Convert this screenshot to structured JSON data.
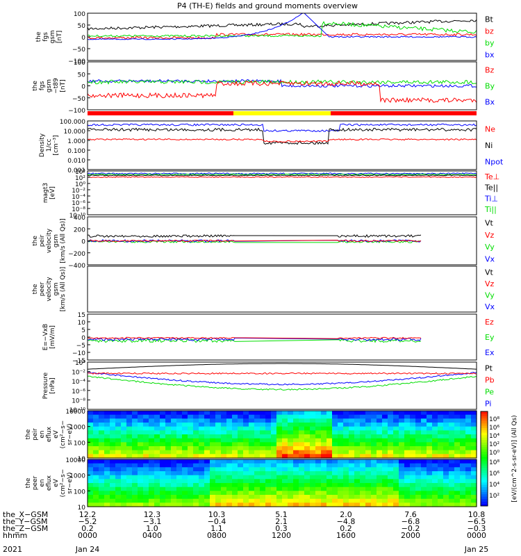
{
  "title": "P4 (TH-E) fields and ground moments overview",
  "colors": {
    "black": "#000000",
    "red": "#ff0000",
    "green": "#00dd00",
    "blue": "#0000ff",
    "yellow": "#ffff00"
  },
  "chart_data": [
    {
      "type": "line",
      "ylabel": [
        "the",
        "fgs",
        "gsm",
        "[nT]"
      ],
      "yticks": [
        "100",
        "50",
        "0",
        "−50",
        "−100"
      ],
      "ylim": [
        -100,
        100
      ],
      "legend": [
        {
          "label": "Bt",
          "color": "black"
        },
        {
          "label": "bz",
          "color": "red"
        },
        {
          "label": "by",
          "color": "green"
        },
        {
          "label": "bx",
          "color": "blue"
        }
      ]
    },
    {
      "type": "line",
      "ylabel": [
        "the",
        "fgs",
        "gsm",
        "−t89",
        "[nT]"
      ],
      "yticks": [
        "100",
        "50",
        "0",
        "−50",
        "−100"
      ],
      "ylim": [
        -120,
        100
      ],
      "legend": [
        {
          "label": "Bz",
          "color": "red"
        },
        {
          "label": "By",
          "color": "green"
        },
        {
          "label": "Bx",
          "color": "blue"
        }
      ]
    },
    {
      "type": "line",
      "ylabel": [
        "Density",
        "1/cc",
        "[cm⁻³]"
      ],
      "yticks": [
        "100.000",
        "10.000",
        "1.000",
        "0.100",
        "0.010",
        "0.001"
      ],
      "yscale": "log",
      "legend": [
        {
          "label": "Ne",
          "color": "red"
        },
        {
          "label": "Ni",
          "color": "black"
        },
        {
          "label": "Npot",
          "color": "blue"
        }
      ]
    },
    {
      "type": "line",
      "ylabel": [
        "magt3",
        "[eV]"
      ],
      "yticks": [
        "10⁴",
        "10²",
        "10⁰",
        "10⁻²",
        "10⁻⁴",
        "10⁻⁶",
        "10⁻⁸",
        "10⁻¹⁰"
      ],
      "yscale": "log",
      "legend": [
        {
          "label": "Te⊥",
          "color": "red"
        },
        {
          "label": "Te||",
          "color": "black"
        },
        {
          "label": "Ti⊥",
          "color": "blue"
        },
        {
          "label": "Ti||",
          "color": "green"
        }
      ]
    },
    {
      "type": "line",
      "ylabel": [
        "the",
        "peir",
        "velocity",
        "gsm",
        "[km/s (All Qs)]"
      ],
      "yticks": [
        "400",
        "200",
        "0",
        "−200",
        "−400"
      ],
      "ylim": [
        -400,
        400
      ],
      "legend": [
        {
          "label": "Vt",
          "color": "black"
        },
        {
          "label": "Vz",
          "color": "red"
        },
        {
          "label": "Vy",
          "color": "green"
        },
        {
          "label": "Vx",
          "color": "blue"
        }
      ]
    },
    {
      "type": "line",
      "ylabel": [
        "the",
        "peer",
        "velocity",
        "gsm",
        "[km/s (All Qs)]"
      ],
      "yticks": [],
      "legend": [
        {
          "label": "Vt",
          "color": "black"
        },
        {
          "label": "Vz",
          "color": "red"
        },
        {
          "label": "Vy",
          "color": "green"
        },
        {
          "label": "Vx",
          "color": "blue"
        }
      ]
    },
    {
      "type": "line",
      "ylabel": [
        "E=−VxB",
        "[mV/m]"
      ],
      "yticks": [
        "15",
        "10",
        "5",
        "0",
        "−5",
        "−10",
        "−15"
      ],
      "ylim": [
        -15,
        15
      ],
      "legend": [
        {
          "label": "Ez",
          "color": "red"
        },
        {
          "label": "Ey",
          "color": "green"
        },
        {
          "label": "Ex",
          "color": "blue"
        }
      ]
    },
    {
      "type": "line",
      "ylabel": [
        "Pressure",
        "[nPa]"
      ],
      "yticks": [
        "10⁰",
        "10⁻²",
        "10⁻⁴",
        "10⁻⁶",
        "10⁻⁸",
        "10⁻¹⁰"
      ],
      "yscale": "log",
      "legend": [
        {
          "label": "Pt",
          "color": "black"
        },
        {
          "label": "Pb",
          "color": "red"
        },
        {
          "label": "Pe",
          "color": "green"
        },
        {
          "label": "Pi",
          "color": "blue"
        }
      ]
    },
    {
      "type": "heatmap",
      "ylabel": [
        "the",
        "peir",
        "en",
        "eflux",
        "eV",
        "(cm²−s−",
        "sr−eV)"
      ],
      "yticks": [
        "10000",
        "1000",
        "100",
        "10"
      ],
      "yscale": "log"
    },
    {
      "type": "heatmap",
      "ylabel": [
        "the",
        "peer",
        "en",
        "eflux",
        "eV",
        "(cm²−s−",
        "sr−eV)"
      ],
      "yticks": [
        "10000",
        "1000",
        "100",
        "10"
      ],
      "yscale": "log"
    }
  ],
  "colorbar": {
    "label": "[eV/(cm^2-s-sr-eV)] (All Qs)",
    "ticks_top": [
      "10⁸",
      "10⁶",
      "10⁴",
      "10²",
      "10⁰"
    ],
    "ticks_bottom": [
      "10⁸",
      "10⁶",
      "10⁴",
      "10²"
    ]
  },
  "xaxis": {
    "rows": [
      {
        "label": "the_X−GSM",
        "values": [
          "12.2",
          "12.3",
          "10.3",
          "5.1",
          "2.0",
          "7.6",
          "10.8"
        ]
      },
      {
        "label": "the_Y−GSM",
        "values": [
          "−5.2",
          "−3.1",
          "−0.4",
          "2.1",
          "−4.8",
          "−6.8",
          "−6.5"
        ]
      },
      {
        "label": "the_Z−GSM",
        "values": [
          "0.2",
          "1.0",
          "1.1",
          "0.3",
          "0.2",
          "−0.2",
          "−0.3"
        ]
      },
      {
        "label": "hhmm",
        "values": [
          "0000",
          "0400",
          "0800",
          "1200",
          "1600",
          "2000",
          "0000"
        ]
      }
    ],
    "year": "2021",
    "date_start": "Jan 24",
    "date_end": "Jan 25"
  }
}
